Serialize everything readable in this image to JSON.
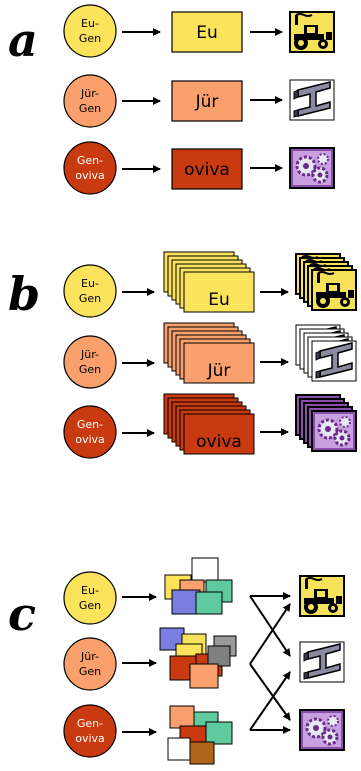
{
  "panels": [
    {
      "letter": "a",
      "rows": [
        {
          "gene_line1": "Eu-",
          "gene_line2": "Gen",
          "product": "Eu",
          "color": "#fbe35b",
          "text_color": "#000000",
          "icon": "tractor-icon"
        },
        {
          "gene_line1": "Jür-",
          "gene_line2": "Gen",
          "product": "Jür",
          "color": "#f9a06d",
          "text_color": "#000000",
          "icon": "steel-beam-icon"
        },
        {
          "gene_line1": "Gen-",
          "gene_line2": "oviva",
          "product": "oviva",
          "color": "#c93a10",
          "text_color": "#ffffff",
          "icon": "gears-icon"
        }
      ]
    },
    {
      "letter": "b",
      "rows": [
        {
          "gene_line1": "Eu-",
          "gene_line2": "Gen",
          "product": "Eu"
        },
        {
          "gene_line1": "Jür-",
          "gene_line2": "Gen",
          "product": "Jür"
        },
        {
          "gene_line1": "Gen-",
          "gene_line2": "oviva",
          "product": "oviva"
        }
      ]
    },
    {
      "letter": "c",
      "rows": [
        {
          "gene_line1": "Eu-",
          "gene_line2": "Gen"
        },
        {
          "gene_line1": "Jür-",
          "gene_line2": "Gen"
        },
        {
          "gene_line1": "Gen-",
          "gene_line2": "oviva"
        }
      ]
    }
  ],
  "colors": {
    "eu": "#fbe35b",
    "jur": "#f9a06d",
    "oviva": "#c93a10",
    "icon_yellow": "#f6e25a",
    "icon_purple": "#8a4fa8",
    "beam_gray": "#8a8aa0"
  }
}
